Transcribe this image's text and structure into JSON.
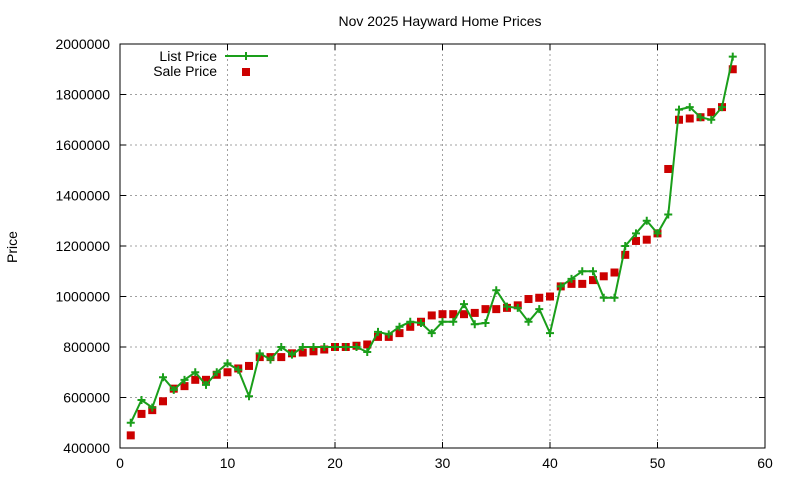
{
  "chart_data": {
    "type": "line",
    "title": "Nov 2025 Hayward Home Prices",
    "xlabel": "",
    "ylabel": "Price",
    "xlim": [
      0,
      60
    ],
    "ylim": [
      400000,
      2000000
    ],
    "xticks": [
      0,
      10,
      20,
      30,
      40,
      50,
      60
    ],
    "yticks": [
      400000,
      600000,
      800000,
      1000000,
      1200000,
      1400000,
      1600000,
      1800000,
      2000000
    ],
    "grid": true,
    "legend_position": "top-left",
    "series": [
      {
        "name": "List Price",
        "style": "line+cross",
        "color": "#1a9e1a",
        "x": [
          1,
          2,
          3,
          4,
          5,
          6,
          7,
          8,
          9,
          10,
          11,
          12,
          13,
          14,
          15,
          16,
          17,
          18,
          19,
          20,
          21,
          22,
          23,
          24,
          25,
          26,
          27,
          28,
          29,
          30,
          31,
          32,
          33,
          34,
          35,
          36,
          37,
          38,
          39,
          40,
          41,
          42,
          43,
          44,
          45,
          46,
          47,
          48,
          49,
          50,
          51,
          52,
          53,
          54,
          55,
          56,
          57
        ],
        "y": [
          500000,
          590000,
          560000,
          680000,
          630000,
          670000,
          700000,
          650000,
          700000,
          735000,
          710000,
          605000,
          775000,
          750000,
          800000,
          770000,
          800000,
          800000,
          800000,
          800000,
          800000,
          800000,
          780000,
          860000,
          850000,
          880000,
          900000,
          895000,
          855000,
          900000,
          900000,
          970000,
          890000,
          895000,
          1025000,
          960000,
          955000,
          900000,
          950000,
          855000,
          1040000,
          1070000,
          1100000,
          1100000,
          995000,
          995000,
          1200000,
          1250000,
          1300000,
          1250000,
          1325000,
          1740000,
          1750000,
          1710000,
          1700000,
          1750000,
          1950000
        ]
      },
      {
        "name": "Sale Price",
        "style": "square",
        "color": "#cc0000",
        "x": [
          1,
          2,
          3,
          4,
          5,
          6,
          7,
          8,
          9,
          10,
          11,
          12,
          13,
          14,
          15,
          16,
          17,
          18,
          19,
          20,
          21,
          22,
          23,
          24,
          25,
          26,
          27,
          28,
          29,
          30,
          31,
          32,
          33,
          34,
          35,
          36,
          37,
          38,
          39,
          40,
          41,
          42,
          43,
          44,
          45,
          46,
          47,
          48,
          49,
          50,
          51,
          52,
          53,
          54,
          55,
          56,
          57
        ],
        "y": [
          450000,
          535000,
          550000,
          585000,
          635000,
          645000,
          670000,
          670000,
          690000,
          700000,
          715000,
          725000,
          760000,
          760000,
          760000,
          775000,
          778000,
          783000,
          790000,
          800000,
          800000,
          805000,
          810000,
          840000,
          840000,
          855000,
          880000,
          900000,
          925000,
          930000,
          930000,
          930000,
          935000,
          950000,
          950000,
          955000,
          965000,
          990000,
          995000,
          1000000,
          1040000,
          1050000,
          1050000,
          1065000,
          1080000,
          1095000,
          1165000,
          1220000,
          1225000,
          1250000,
          1505000,
          1700000,
          1705000,
          1710000,
          1730000,
          1750000,
          1900000
        ]
      }
    ]
  }
}
